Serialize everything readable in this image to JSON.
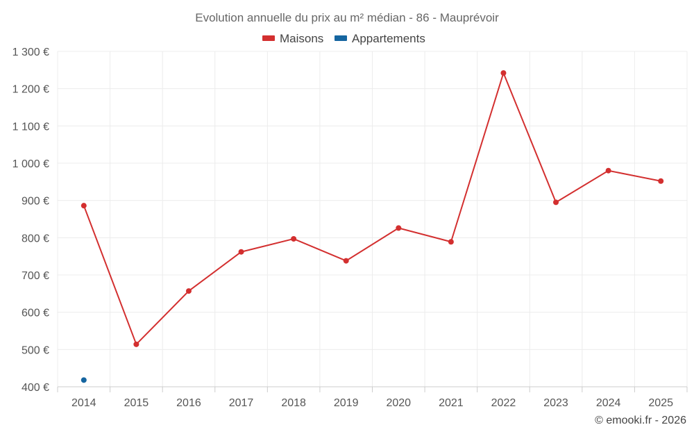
{
  "chart_data": {
    "type": "line",
    "title": "Evolution annuelle du prix au m² médian - 86 - Mauprévoir",
    "categories": [
      "2014",
      "2015",
      "2016",
      "2017",
      "2018",
      "2019",
      "2020",
      "2021",
      "2022",
      "2023",
      "2024",
      "2025"
    ],
    "series": [
      {
        "name": "Maisons",
        "color": "#d32f2f",
        "values": [
          886,
          514,
          657,
          762,
          797,
          738,
          826,
          789,
          1242,
          895,
          980,
          952
        ]
      },
      {
        "name": "Appartements",
        "color": "#1565a0",
        "values": [
          418,
          null,
          null,
          null,
          null,
          null,
          null,
          null,
          null,
          null,
          null,
          null
        ]
      }
    ],
    "ylim": [
      400,
      1300
    ],
    "yticks": [
      400,
      500,
      600,
      700,
      800,
      900,
      1000,
      1100,
      1200,
      1300
    ],
    "ytick_labels": [
      "400 €",
      "500 €",
      "600 €",
      "700 €",
      "800 €",
      "900 €",
      "1 000 €",
      "1 100 €",
      "1 200 €",
      "1 300 €"
    ],
    "grid": true,
    "legend_position": "top-center"
  },
  "credit": "© emooki.fr - 2026"
}
